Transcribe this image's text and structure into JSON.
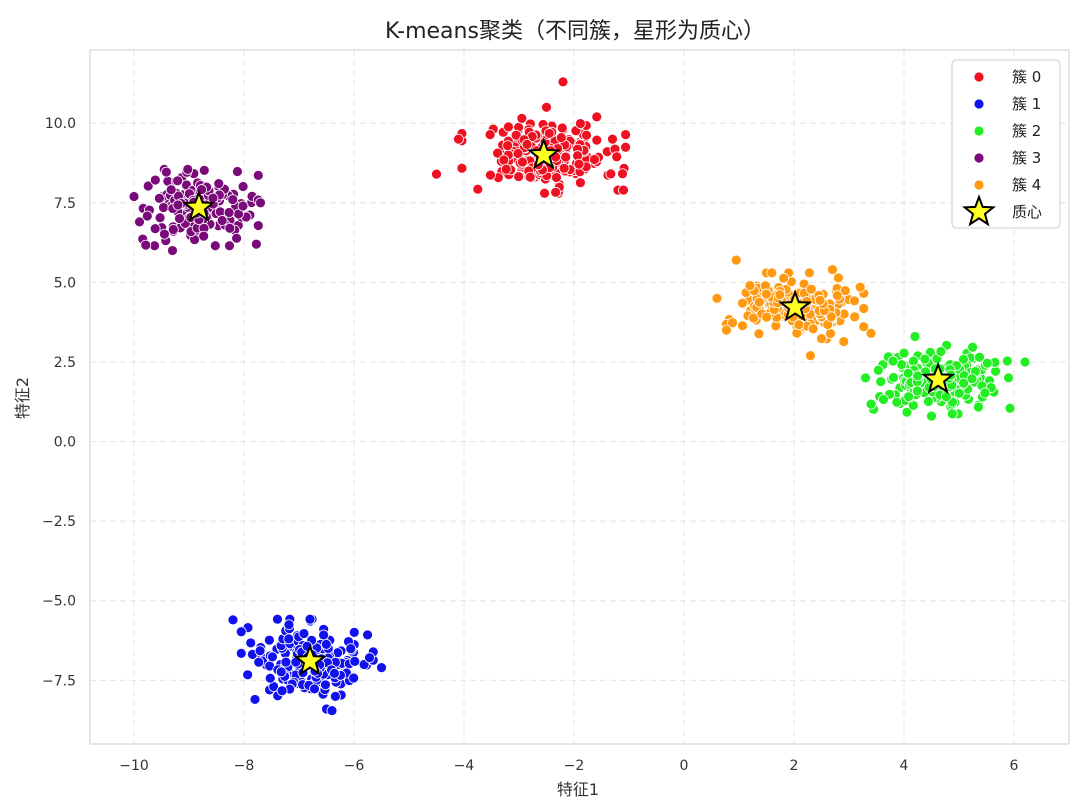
{
  "chart_data": {
    "type": "scatter",
    "title": "K-means聚类（不同簇，星形为质心）",
    "xlabel": "特征1",
    "ylabel": "特征2",
    "xlim": [
      -10.8,
      7.0
    ],
    "ylim": [
      -9.5,
      12.3
    ],
    "xticks": [
      -10,
      -8,
      -6,
      -4,
      -2,
      0,
      2,
      4,
      6
    ],
    "xtick_labels": [
      "−10",
      "−8",
      "−6",
      "−4",
      "−2",
      "0",
      "2",
      "4",
      "6"
    ],
    "yticks": [
      -7.5,
      -5.0,
      -2.5,
      0.0,
      2.5,
      5.0,
      7.5,
      10.0
    ],
    "ytick_labels": [
      "−7.5",
      "−5.0",
      "−2.5",
      "0.0",
      "2.5",
      "5.0",
      "7.5",
      "10.0"
    ],
    "grid": true,
    "legend_position": "top-right",
    "series": [
      {
        "name": "簇 0",
        "color": "#ee1122",
        "center": [
          -2.55,
          9.0
        ],
        "spread": [
          0.62,
          0.5
        ],
        "count": 200,
        "extra_points": [
          [
            -4.5,
            8.4
          ],
          [
            -2.2,
            11.3
          ],
          [
            -4.1,
            9.5
          ],
          [
            -1.2,
            7.9
          ],
          [
            -1.1,
            7.9
          ],
          [
            -2.5,
            10.5
          ],
          [
            -1.3,
            9.5
          ]
        ]
      },
      {
        "name": "簇 1",
        "color": "#1111ee",
        "center": [
          -6.85,
          -6.9
        ],
        "spread": [
          0.5,
          0.55
        ],
        "count": 200,
        "extra_points": [
          [
            -8.2,
            -5.6
          ],
          [
            -6.5,
            -8.4
          ],
          [
            -6.4,
            -8.45
          ],
          [
            -5.5,
            -7.1
          ],
          [
            -7.8,
            -8.1
          ]
        ]
      },
      {
        "name": "簇 2",
        "color": "#22ee22",
        "center": [
          4.62,
          1.95
        ],
        "spread": [
          0.55,
          0.45
        ],
        "count": 200,
        "extra_points": [
          [
            6.2,
            2.5
          ],
          [
            3.3,
            2.0
          ],
          [
            5.9,
            2.0
          ],
          [
            4.2,
            3.3
          ],
          [
            4.5,
            0.8
          ]
        ]
      },
      {
        "name": "簇 3",
        "color": "#7a0a7a",
        "center": [
          -8.82,
          7.35
        ],
        "spread": [
          0.45,
          0.5
        ],
        "count": 200,
        "extra_points": [
          [
            -10.0,
            7.7
          ],
          [
            -9.9,
            6.9
          ],
          [
            -9.3,
            6.0
          ],
          [
            -7.7,
            7.5
          ]
        ]
      },
      {
        "name": "簇 4",
        "color": "#ff9911",
        "center": [
          2.02,
          4.22
        ],
        "spread": [
          0.52,
          0.45
        ],
        "count": 200,
        "extra_points": [
          [
            0.95,
            5.7
          ],
          [
            0.6,
            4.5
          ],
          [
            2.3,
            2.7
          ],
          [
            3.4,
            3.4
          ],
          [
            2.7,
            5.4
          ]
        ]
      }
    ],
    "centroids": {
      "name": "质心",
      "color": "#ffff22",
      "points": [
        [
          -2.55,
          9.0
        ],
        [
          -6.8,
          -6.9
        ],
        [
          4.62,
          1.95
        ],
        [
          -8.82,
          7.35
        ],
        [
          2.02,
          4.22
        ]
      ]
    }
  }
}
